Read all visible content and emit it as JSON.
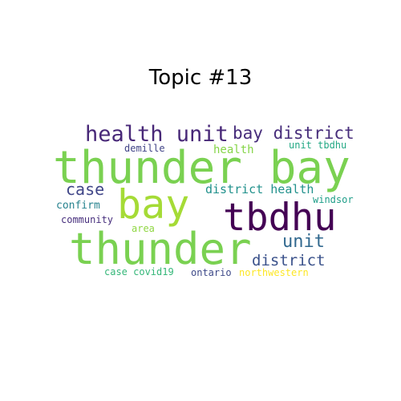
{
  "title": "Topic #13",
  "words": [
    {
      "text": "thunder bay",
      "color": "#7ad151"
    },
    {
      "text": "health unit",
      "color": "#482878"
    },
    {
      "text": "bay district",
      "color": "#472d7b"
    },
    {
      "text": "bay",
      "color": "#a5db36"
    },
    {
      "text": "tbdhu",
      "color": "#440154"
    },
    {
      "text": "thunder",
      "color": "#7ad151"
    },
    {
      "text": "unit",
      "color": "#31688e"
    },
    {
      "text": "district",
      "color": "#3b528b"
    },
    {
      "text": "case",
      "color": "#404688"
    },
    {
      "text": "district health",
      "color": "#21918c"
    },
    {
      "text": "health",
      "color": "#86d549"
    },
    {
      "text": "demille",
      "color": "#414487"
    },
    {
      "text": "unit tbdhu",
      "color": "#22a884"
    },
    {
      "text": "windsor",
      "color": "#1f9e89"
    },
    {
      "text": "confirm",
      "color": "#26828e"
    },
    {
      "text": "community",
      "color": "#472f7d"
    },
    {
      "text": "area",
      "color": "#90d743"
    },
    {
      "text": "case covid19",
      "color": "#35b779"
    },
    {
      "text": "ontario",
      "color": "#3e4a89"
    },
    {
      "text": "northwestern",
      "color": "#fde725"
    }
  ]
}
